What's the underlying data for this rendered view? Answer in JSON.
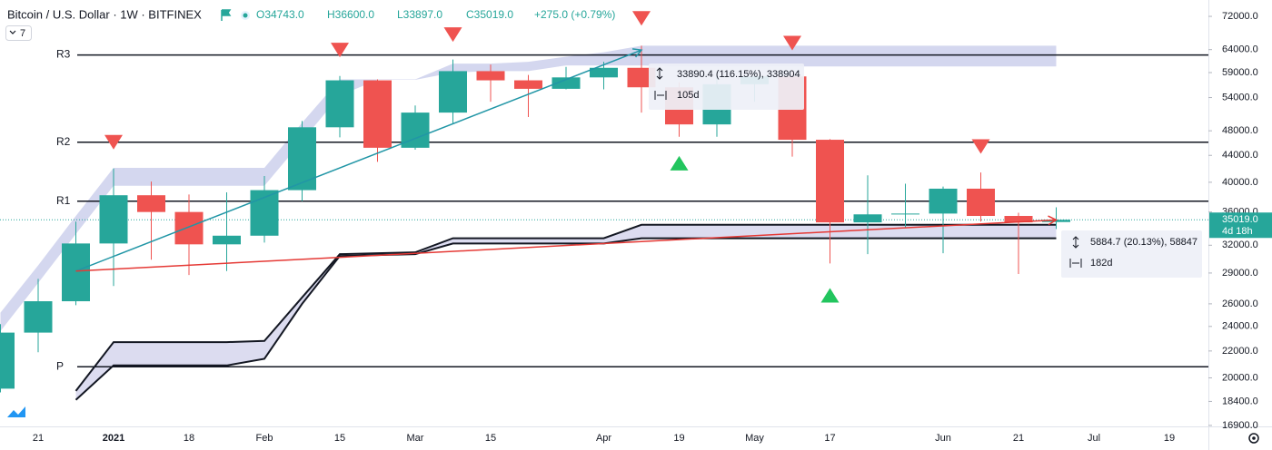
{
  "chart_data": {
    "type": "candlestick",
    "title": "Bitcoin / U.S. Dollar · 1W · BITFINEX",
    "indicator_count": "7",
    "legend": [
      "O34743.0",
      "H36600.0",
      "L33897.0",
      "C35019.0",
      "+275.0 (+0.79%)"
    ],
    "log_scale": true,
    "up_color": "#26a69a",
    "down_color": "#ef5350",
    "categories": [
      null,
      "21",
      null,
      "2021",
      null,
      "18",
      null,
      "Feb",
      null,
      "15",
      null,
      "Mar",
      null,
      "15",
      null,
      null,
      "Apr",
      null,
      "19",
      null,
      "May",
      null,
      "17",
      null,
      null,
      "Jun",
      null,
      "21",
      null,
      "Jul",
      null,
      "19"
    ],
    "open": [
      19250,
      23480,
      26240,
      32200,
      38200,
      36000,
      32100,
      33100,
      38900,
      48600,
      57400,
      45200,
      51200,
      59300,
      57400,
      55700,
      58000,
      60000,
      56000,
      49100,
      56600,
      58200,
      46500,
      34700,
      35700,
      35800,
      39100,
      35500,
      34743,
      null,
      null,
      null
    ],
    "high": [
      24200,
      28400,
      34800,
      42000,
      40100,
      38300,
      38600,
      40900,
      49700,
      58300,
      57600,
      52500,
      61800,
      60700,
      58500,
      60200,
      61300,
      64900,
      57000,
      58400,
      59500,
      59600,
      46600,
      41000,
      39800,
      39400,
      41400,
      35900,
      36600,
      null,
      null,
      null
    ],
    "low": [
      19000,
      21900,
      25880,
      27700,
      30400,
      28800,
      29200,
      32300,
      37400,
      46900,
      43000,
      44900,
      49300,
      53200,
      50400,
      55600,
      55600,
      51200,
      47000,
      47000,
      53200,
      43800,
      30000,
      31000,
      34000,
      31100,
      34800,
      28900,
      33897,
      null,
      null,
      null
    ],
    "close": [
      23480,
      26240,
      32200,
      38200,
      36000,
      32100,
      33100,
      38900,
      48600,
      57400,
      45200,
      51200,
      59300,
      57400,
      55700,
      58000,
      60000,
      56000,
      49100,
      56600,
      58200,
      46500,
      34700,
      35700,
      35800,
      39100,
      35500,
      34700,
      35019,
      null,
      null,
      null
    ],
    "ylim": [
      16840,
      76300
    ],
    "yticks": [
      {
        "value": 72000,
        "label": "72000.0"
      },
      {
        "value": 64000,
        "label": "64000.0"
      },
      {
        "value": 59000,
        "label": "59000.0"
      },
      {
        "value": 54000,
        "label": "54000.0"
      },
      {
        "value": 48000,
        "label": "48000.0"
      },
      {
        "value": 44000,
        "label": "44000.0"
      },
      {
        "value": 40000,
        "label": "40000.0"
      },
      {
        "value": 36000,
        "label": "36000.0"
      },
      {
        "value": 32000,
        "label": "32000.0"
      },
      {
        "value": 29000,
        "label": "29000.0"
      },
      {
        "value": 26000,
        "label": "26000.0"
      },
      {
        "value": 24000,
        "label": "24000.0"
      },
      {
        "value": 22000,
        "label": "22000.0"
      },
      {
        "value": 20000,
        "label": "20000.0"
      },
      {
        "value": 18400,
        "label": "18400.0"
      },
      {
        "value": 16900,
        "label": "16900.0"
      }
    ],
    "last_price": {
      "value": 35019,
      "label": "35019.0",
      "countdown": "4d 18h",
      "color": "#26a69a"
    },
    "levels": [
      {
        "label": "R3",
        "value": 62800
      },
      {
        "label": "R2",
        "value": 46100
      },
      {
        "label": "R1",
        "value": 37400
      },
      {
        "label": "P",
        "value": 20800
      }
    ],
    "level_color": "#131722",
    "cloud_upper": {
      "fill": "#d4d7ef",
      "top": [
        25200,
        29800,
        35500,
        42100,
        42100,
        42100,
        42100,
        42100,
        49400,
        57600,
        57600,
        57600,
        60900,
        60900,
        61300,
        62400,
        63400,
        64900,
        64900,
        64900,
        64900,
        64900,
        64900,
        64900,
        64900,
        64900,
        64900,
        64900,
        64900,
        null,
        null,
        null
      ],
      "bottom": [
        23600,
        28000,
        33300,
        39500,
        39500,
        39500,
        39500,
        39500,
        46300,
        54400,
        57500,
        57500,
        59000,
        59300,
        59300,
        60500,
        60500,
        60500,
        60300,
        60300,
        60300,
        60300,
        60300,
        60300,
        60300,
        60300,
        60300,
        60300,
        60300,
        null,
        null,
        null
      ]
    },
    "cloud_lower": {
      "fill": "#dcdcf0",
      "line_color": "#131722",
      "top": [
        null,
        null,
        19100,
        22700,
        22700,
        22700,
        22700,
        22800,
        26600,
        31000,
        31100,
        31200,
        32800,
        32800,
        32800,
        32800,
        32800,
        34400,
        34400,
        34400,
        34400,
        34400,
        34400,
        34400,
        34400,
        34400,
        34400,
        34400,
        34400,
        null,
        null,
        null
      ],
      "bottom": [
        null,
        null,
        18500,
        20900,
        20900,
        20900,
        20900,
        21400,
        26000,
        30800,
        30900,
        31000,
        32200,
        32200,
        32200,
        32200,
        32200,
        32800,
        32800,
        32800,
        32800,
        32800,
        32800,
        32800,
        32800,
        32800,
        32800,
        32800,
        32800,
        null,
        null,
        null
      ]
    },
    "sell_markers": {
      "color": "#ef5350",
      "points": [
        {
          "index": 3,
          "value": 46100
        },
        {
          "index": 9,
          "value": 63900
        },
        {
          "index": 12,
          "value": 67500
        },
        {
          "index": 17,
          "value": 71500
        },
        {
          "index": 21,
          "value": 65500
        },
        {
          "index": 26,
          "value": 45400
        }
      ]
    },
    "buy_markers": {
      "color": "#22c55e",
      "points": [
        {
          "index": 18,
          "value": 42800
        },
        {
          "index": 22,
          "value": 26800
        }
      ]
    },
    "trend_lines": [
      {
        "color": "#2196a6",
        "points": [
          {
            "index": 2,
            "value": 29200
          },
          {
            "index": 17,
            "value": 63900
          }
        ]
      },
      {
        "color": "#e53935",
        "points": [
          {
            "index": 2,
            "value": 29200
          },
          {
            "index": 28,
            "value": 35000
          }
        ]
      }
    ],
    "measures": [
      {
        "change": "33890.4 (116.15%), 338904",
        "duration": "105d"
      },
      {
        "change": "5884.7 (20.13%), 58847",
        "duration": "182d"
      }
    ]
  }
}
